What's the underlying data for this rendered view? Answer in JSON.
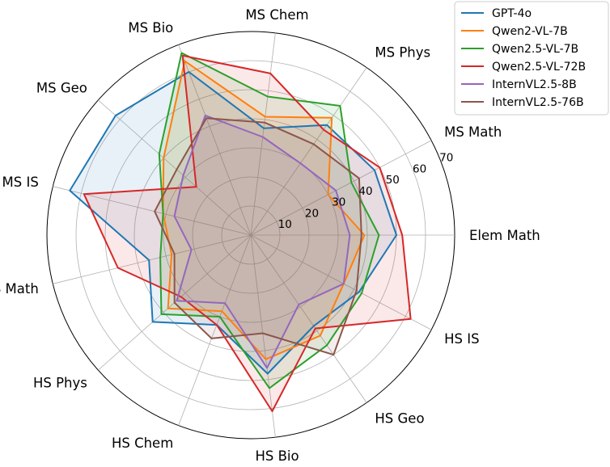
{
  "chart_data": {
    "type": "radar",
    "title": "",
    "categories": [
      "Elem Math",
      "MS Math",
      "MS Phys",
      "MS Chem",
      "MS Bio",
      "MS Geo",
      "MS IS",
      "HS Math",
      "HS Phys",
      "HS Chem",
      "HS Bio",
      "HS Geo",
      "HS IS"
    ],
    "r_ticks": [
      10,
      20,
      30,
      40,
      50,
      60,
      70
    ],
    "r_tick_labels": [
      "10",
      "20",
      "30",
      "40",
      "50",
      "60",
      "70"
    ],
    "rlim": [
      0,
      70
    ],
    "grid": true,
    "legend_position": "top-right",
    "series": [
      {
        "name": "GPT-4o",
        "color": "#1f77b4",
        "values": [
          50,
          48,
          46,
          37,
          60,
          62,
          64,
          36,
          45,
          33,
          48,
          38,
          42
        ]
      },
      {
        "name": "Qwen2-VL-7B",
        "color": "#ff7f0e",
        "values": [
          39,
          30,
          49,
          41,
          64,
          40,
          31,
          28,
          38,
          28,
          43,
          42,
          36
        ]
      },
      {
        "name": "Qwen2.5-VL-7B",
        "color": "#2ca02c",
        "values": [
          44,
          39,
          54,
          48,
          67,
          42,
          31,
          32,
          41,
          30,
          53,
          46,
          43
        ]
      },
      {
        "name": "Qwen2.5-VL-72B",
        "color": "#d62728",
        "values": [
          52,
          50,
          44,
          56,
          66,
          25,
          59,
          47,
          32,
          33,
          61,
          39,
          62
        ]
      },
      {
        "name": "InternVL2.5-8B",
        "color": "#9467bd",
        "values": [
          34,
          33,
          30,
          34,
          44,
          31,
          27,
          21,
          34,
          25,
          46,
          29,
          36
        ]
      },
      {
        "name": "InternVL2.5-76B",
        "color": "#8c564b",
        "values": [
          38,
          42,
          38,
          39,
          43,
          34,
          34,
          27,
          35,
          38,
          34,
          50,
          41
        ]
      }
    ]
  }
}
